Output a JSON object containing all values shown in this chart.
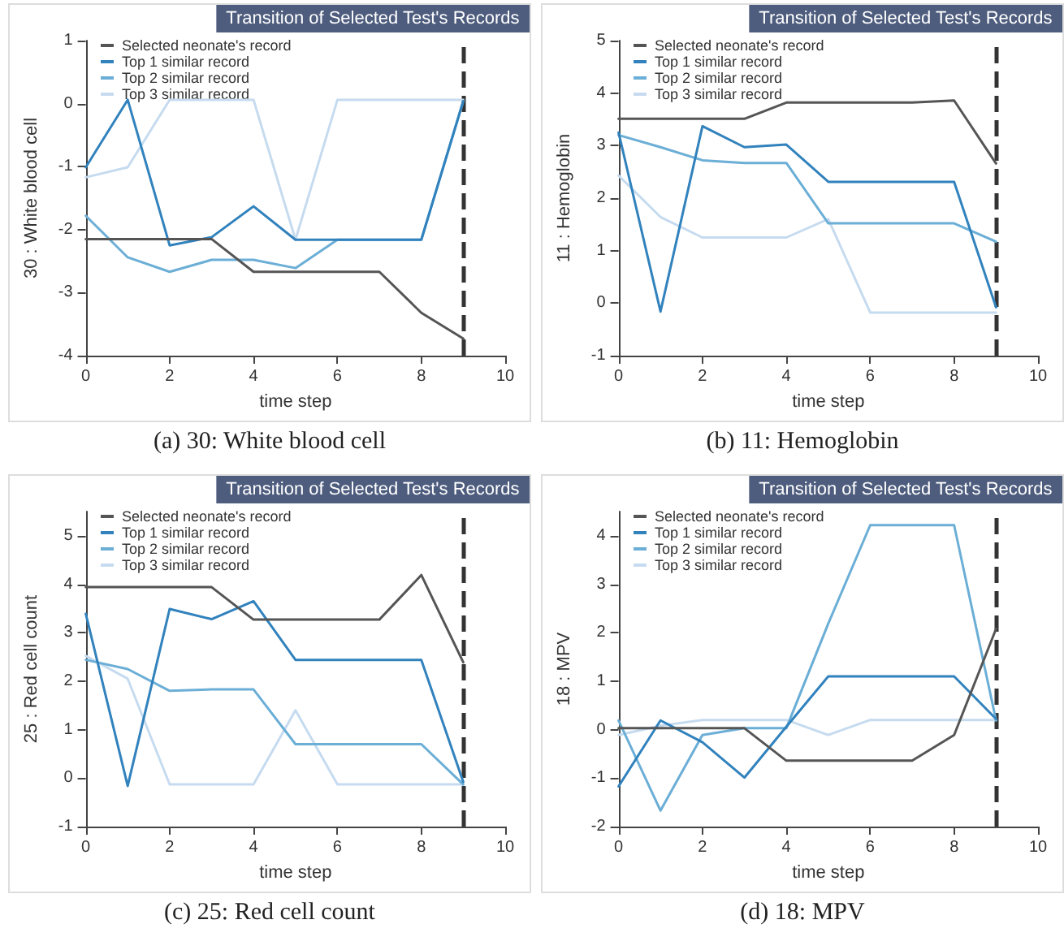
{
  "chart_data": [
    {
      "type": "line",
      "title": "Transition of Selected Test's Records",
      "xlabel": "time step",
      "ylabel": "30 : White blood cell",
      "annotations": [
        "(a) 30: White blood cell"
      ],
      "x": [
        0,
        1,
        2,
        3,
        4,
        5,
        6,
        7,
        8,
        9
      ],
      "xlim": [
        0,
        10
      ],
      "xticks": [
        0,
        2,
        4,
        6,
        8,
        10
      ],
      "ylim": [
        -4,
        1
      ],
      "yticks": [
        -4,
        -3,
        -2,
        -1,
        0,
        1
      ],
      "grid": false,
      "legend": "top left",
      "marker": "none",
      "line_style": "solid",
      "series": [
        {
          "name": "Selected neonate's record",
          "color": "#555555",
          "values": [
            -2.15,
            -2.15,
            -2.15,
            -2.15,
            -2.67,
            -2.67,
            -2.67,
            -2.67,
            -3.32,
            -3.73
          ]
        },
        {
          "name": "Top 1 similar record",
          "color": "#3182bd",
          "values": [
            -1.01,
            0.06,
            -2.25,
            -2.12,
            -1.63,
            -2.16,
            -2.16,
            -2.16,
            -2.16,
            0.04
          ]
        },
        {
          "name": "Top 2 similar record",
          "color": "#6baed6",
          "values": [
            -1.78,
            -2.44,
            -2.67,
            -2.48,
            -2.48,
            -2.61,
            -2.16,
            -2.16,
            -2.16,
            0.04
          ]
        },
        {
          "name": "Top 3 similar record",
          "color": "#c6dbef",
          "values": [
            -1.17,
            -1.01,
            0.06,
            0.06,
            0.06,
            -2.16,
            0.06,
            0.06,
            0.06,
            0.06
          ]
        }
      ],
      "ref_lines": [
        {
          "axis": "x",
          "value": 9,
          "color": "#333333",
          "line_style": "dashed"
        }
      ]
    },
    {
      "type": "line",
      "title": "Transition of Selected Test's Records",
      "xlabel": "time step",
      "ylabel": "11 : Hemoglobin",
      "annotations": [
        "(b) 11: Hemoglobin"
      ],
      "x": [
        0,
        1,
        2,
        3,
        4,
        5,
        6,
        7,
        8,
        9
      ],
      "xlim": [
        0,
        10
      ],
      "xticks": [
        0,
        2,
        4,
        6,
        8,
        10
      ],
      "ylim": [
        -1,
        5
      ],
      "yticks": [
        -1,
        0,
        1,
        2,
        3,
        4,
        5
      ],
      "grid": false,
      "legend": "top left",
      "marker": "none",
      "line_style": "solid",
      "series": [
        {
          "name": "Selected neonate's record",
          "color": "#555555",
          "values": [
            3.51,
            3.51,
            3.51,
            3.51,
            3.82,
            3.82,
            3.82,
            3.82,
            3.86,
            2.66
          ]
        },
        {
          "name": "Top 1 similar record",
          "color": "#3182bd",
          "values": [
            3.25,
            -0.16,
            3.37,
            2.97,
            3.02,
            2.31,
            2.31,
            2.31,
            2.31,
            -0.08
          ]
        },
        {
          "name": "Top 2 similar record",
          "color": "#6baed6",
          "values": [
            3.2,
            2.97,
            2.72,
            2.67,
            2.67,
            1.52,
            1.52,
            1.52,
            1.52,
            1.17
          ]
        },
        {
          "name": "Top 3 similar record",
          "color": "#c6dbef",
          "values": [
            2.43,
            1.64,
            1.25,
            1.25,
            1.25,
            1.6,
            -0.18,
            -0.18,
            -0.18,
            -0.18
          ]
        }
      ],
      "ref_lines": [
        {
          "axis": "x",
          "value": 9,
          "color": "#333333",
          "line_style": "dashed"
        }
      ]
    },
    {
      "type": "line",
      "title": "Transition of Selected Test's Records",
      "xlabel": "time step",
      "ylabel": "25 : Red cell count",
      "annotations": [
        "(c) 25: Red cell count"
      ],
      "x": [
        0,
        1,
        2,
        3,
        4,
        5,
        6,
        7,
        8,
        9
      ],
      "xlim": [
        0,
        10
      ],
      "xticks": [
        0,
        2,
        4,
        6,
        8,
        10
      ],
      "ylim": [
        -1,
        5.5
      ],
      "yticks": [
        -1,
        0,
        1,
        2,
        3,
        4,
        5
      ],
      "grid": false,
      "legend": "top left",
      "marker": "none",
      "line_style": "solid",
      "series": [
        {
          "name": "Selected neonate's record",
          "color": "#555555",
          "values": [
            3.94,
            3.94,
            3.94,
            3.94,
            3.27,
            3.27,
            3.27,
            3.27,
            4.19,
            2.39
          ]
        },
        {
          "name": "Top 1 similar record",
          "color": "#3182bd",
          "values": [
            3.39,
            -0.16,
            3.49,
            3.28,
            3.65,
            2.44,
            2.44,
            2.44,
            2.44,
            -0.08
          ]
        },
        {
          "name": "Top 2 similar record",
          "color": "#6baed6",
          "values": [
            2.44,
            2.25,
            1.8,
            1.83,
            1.83,
            0.7,
            0.7,
            0.7,
            0.7,
            -0.13
          ]
        },
        {
          "name": "Top 3 similar record",
          "color": "#c6dbef",
          "values": [
            2.52,
            2.05,
            -0.13,
            -0.13,
            -0.13,
            1.4,
            -0.13,
            -0.13,
            -0.13,
            -0.13
          ]
        }
      ],
      "ref_lines": [
        {
          "axis": "x",
          "value": 9,
          "color": "#333333",
          "line_style": "dashed"
        }
      ]
    },
    {
      "type": "line",
      "title": "Transition of Selected Test's Records",
      "xlabel": "time step",
      "ylabel": "18 : MPV",
      "annotations": [
        "(d) 18: MPV"
      ],
      "x": [
        0,
        1,
        2,
        3,
        4,
        5,
        6,
        7,
        8,
        9
      ],
      "xlim": [
        0,
        10
      ],
      "xticks": [
        0,
        2,
        4,
        6,
        8,
        10
      ],
      "ylim": [
        -2,
        4.5
      ],
      "yticks": [
        -2,
        -1,
        0,
        1,
        2,
        3,
        4
      ],
      "grid": false,
      "legend": "top left",
      "marker": "none",
      "line_style": "solid",
      "series": [
        {
          "name": "Selected neonate's record",
          "color": "#555555",
          "values": [
            0.03,
            0.03,
            0.03,
            0.03,
            -0.64,
            -0.64,
            -0.64,
            -0.64,
            -0.11,
            2.08
          ]
        },
        {
          "name": "Top 1 similar record",
          "color": "#3182bd",
          "values": [
            -1.17,
            0.19,
            -0.26,
            -0.99,
            0.06,
            1.1,
            1.1,
            1.1,
            1.1,
            0.22
          ]
        },
        {
          "name": "Top 2 similar record",
          "color": "#6baed6",
          "values": [
            0.19,
            -1.67,
            -0.11,
            0.03,
            0.03,
            2.19,
            4.22,
            4.22,
            4.22,
            0.19
          ]
        },
        {
          "name": "Top 3 similar record",
          "color": "#c6dbef",
          "values": [
            -0.11,
            0.08,
            0.2,
            0.2,
            0.2,
            -0.11,
            0.2,
            0.2,
            0.2,
            0.2
          ]
        }
      ],
      "ref_lines": [
        {
          "axis": "x",
          "value": 9,
          "color": "#333333",
          "line_style": "dashed"
        }
      ]
    }
  ]
}
